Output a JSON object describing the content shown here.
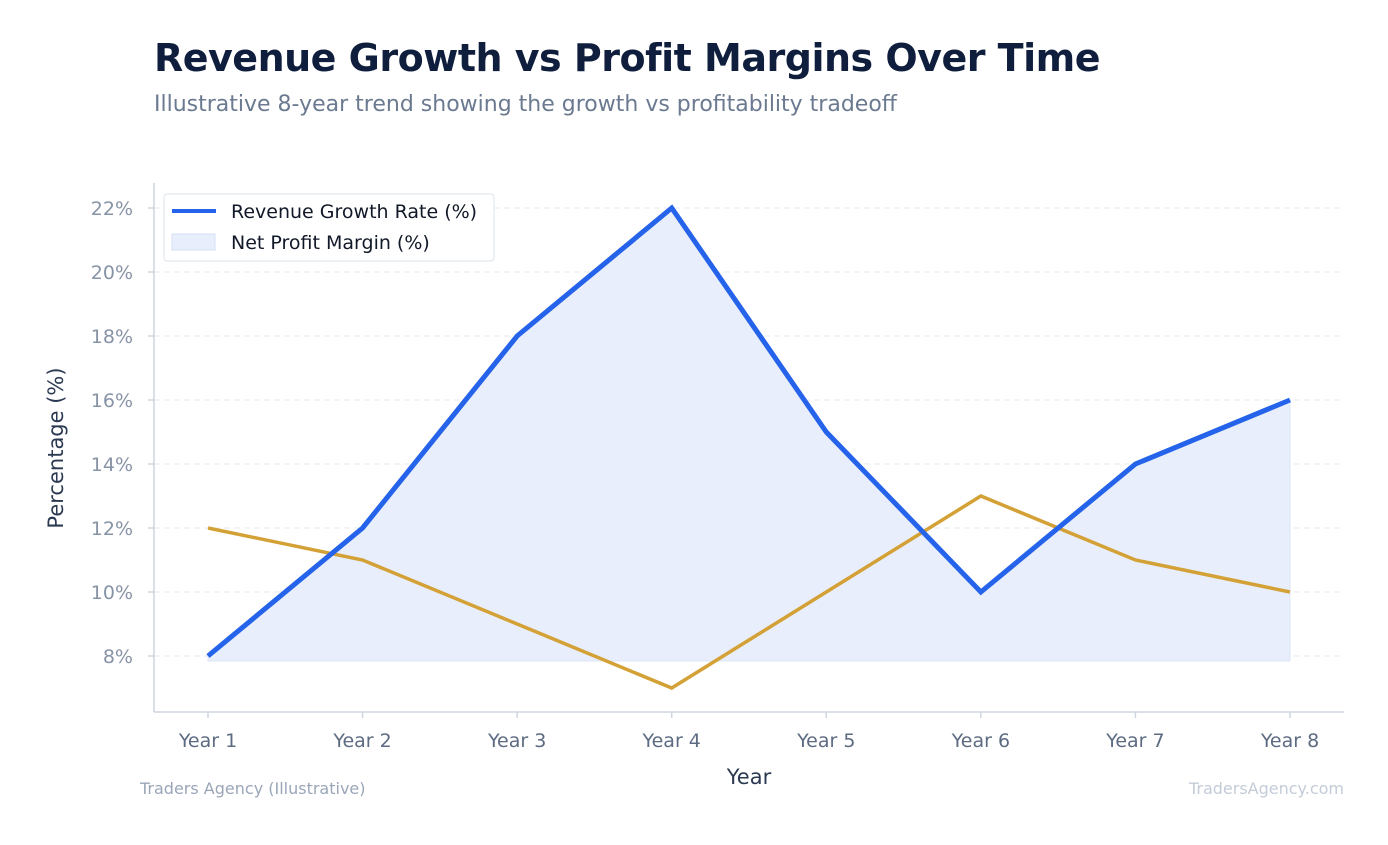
{
  "header": {
    "title": "Revenue Growth vs Profit Margins Over Time",
    "subtitle": "Illustrative 8-year trend showing the growth vs profitability tradeoff"
  },
  "footer": {
    "source": "Traders Agency (Illustrative)",
    "watermark": "TradersAgency.com"
  },
  "chart_data": {
    "type": "line",
    "categories": [
      "Year 1",
      "Year 2",
      "Year 3",
      "Year 4",
      "Year 5",
      "Year 6",
      "Year 7",
      "Year 8"
    ],
    "series": [
      {
        "name": "Revenue Growth Rate (%)",
        "values": [
          8,
          12,
          18,
          22,
          15,
          10,
          14,
          16
        ],
        "color": "#2563eb",
        "fill": "#e8eefb"
      },
      {
        "name": "Net Profit Margin (%)",
        "values": [
          12,
          11,
          9,
          7,
          10,
          13,
          11,
          10
        ],
        "color": "#d4a137"
      }
    ],
    "xlabel": "Year",
    "ylabel": "Percentage (%)",
    "yticks": [
      "8%",
      "10%",
      "12%",
      "14%",
      "16%",
      "18%",
      "20%",
      "22%"
    ],
    "ylim": [
      6.5,
      22.8
    ],
    "grid": true,
    "legend": "top-left"
  }
}
